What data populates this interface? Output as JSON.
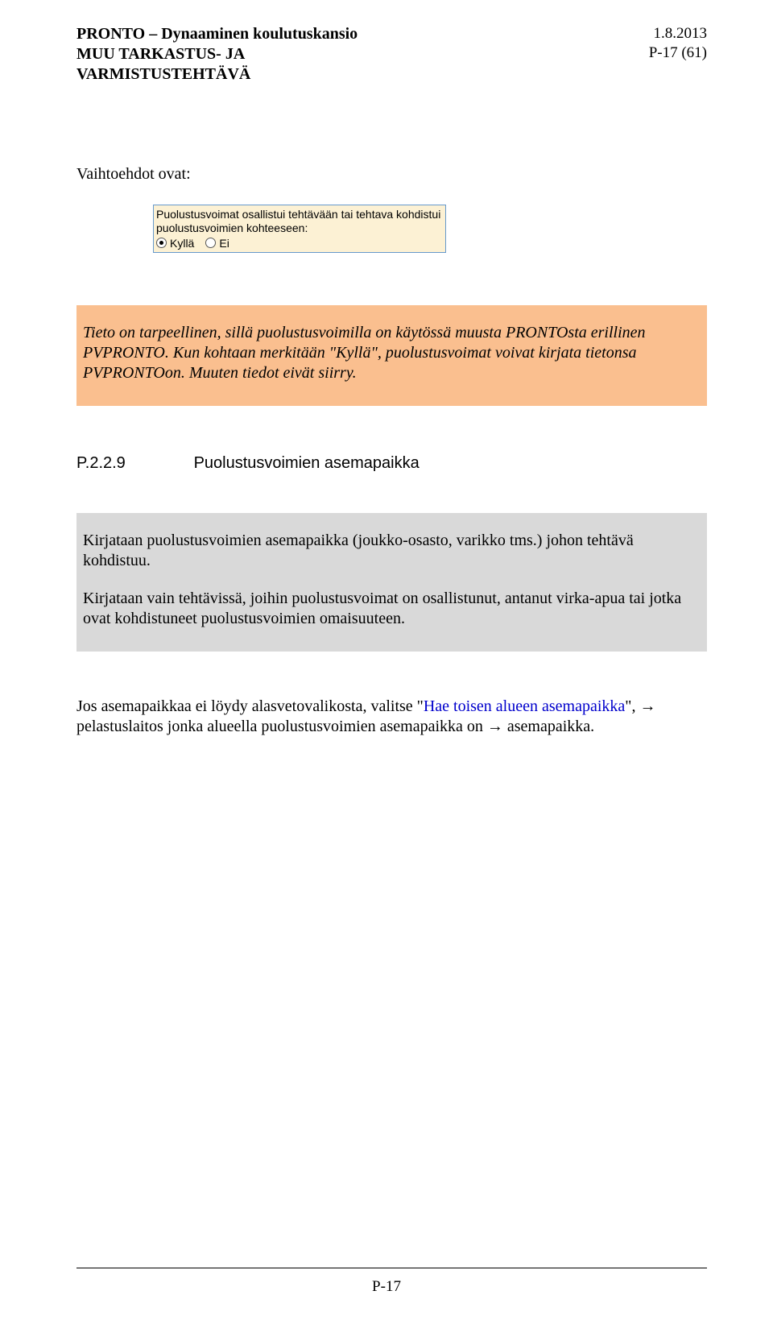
{
  "header": {
    "left_line1": "PRONTO – Dynaaminen koulutuskansio",
    "left_line2": "MUU TARKASTUS- JA",
    "left_line3": "VARMISTUSTEHTÄVÄ",
    "right_line1": "1.8.2013",
    "right_line2": "P-17 (61)"
  },
  "intro_label": "Vaihtoehdot ovat:",
  "form_box": {
    "border_color": "#6699cc",
    "background_color": "#fcf1d4",
    "line1": "Puolustusvoimat osallistui tehtävään tai tehtava kohdistui",
    "line2": "puolustusvoimien kohteeseen:",
    "option_yes": "Kyllä",
    "option_no": "Ei",
    "selected_index": 0
  },
  "orange_box": {
    "background_color": "#fabf8f",
    "text": "Tieto on tarpeellinen, sillä puolustusvoimilla on käytössä muusta PRONTOsta erillinen PVPRONTO. Kun kohtaan merkitään \"Kyllä\", puolustusvoimat voivat kirjata tietonsa PVPRONTOon. Muuten tiedot eivät siirry."
  },
  "section": {
    "number": "P.2.2.9",
    "title": "Puolustusvoimien asemapaikka"
  },
  "gray_box": {
    "background_color": "#d9d9d9",
    "para1": "Kirjataan puolustusvoimien asemapaikka (joukko-osasto, varikko tms.) johon tehtävä kohdistuu.",
    "para2": "Kirjataan vain tehtävissä, joihin puolustusvoimat on osallistunut, antanut virka-apua tai jotka ovat kohdistuneet puolustusvoimien omaisuuteen."
  },
  "body": {
    "prefix": "Jos asemapaikkaa ei löydy alasvetovalikosta, valitse \"",
    "link": "Hae toisen alueen asemapaikka",
    "suffix": "\", → pelastuslaitos jonka alueella puolustusvoimien asemapaikka on → asemapaikka."
  },
  "footer": {
    "page": "P-17"
  },
  "colors": {
    "link_color": "#0000cc"
  }
}
